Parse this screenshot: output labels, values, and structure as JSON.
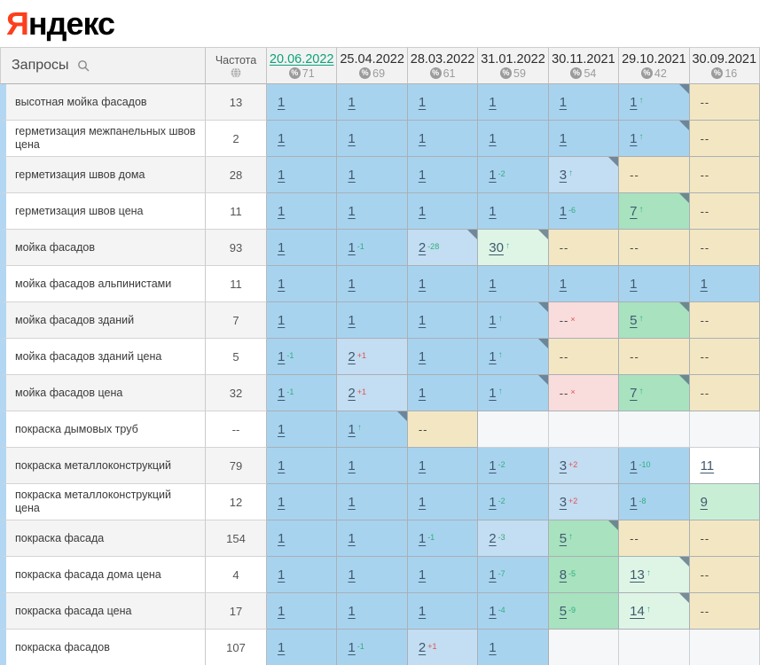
{
  "logo": {
    "ya": "Я",
    "rest": "ндекс"
  },
  "header": {
    "queries_label": "Запросы",
    "search_icon": "search-icon",
    "frequency_label": "Частота",
    "frequency_icon": "globe-icon",
    "dates": [
      {
        "label": "20.06.2022",
        "visibility": "71",
        "active": true
      },
      {
        "label": "25.04.2022",
        "visibility": "69",
        "active": false
      },
      {
        "label": "28.03.2022",
        "visibility": "61",
        "active": false
      },
      {
        "label": "31.01.2022",
        "visibility": "59",
        "active": false
      },
      {
        "label": "30.11.2021",
        "visibility": "54",
        "active": false
      },
      {
        "label": "29.10.2021",
        "visibility": "42",
        "active": false
      },
      {
        "label": "30.09.2021",
        "visibility": "16",
        "active": false
      }
    ]
  },
  "colors": {
    "active_date_link": "#0aa378",
    "logo_red": "#fc3f1d",
    "cell_top_blue": "#a8d3ef",
    "cell_blue_light": "#c3ddf2",
    "cell_missing_beige": "#f3e7c3",
    "cell_dropped_pink": "#f9dcdc",
    "cell_green": "#a8e2bf",
    "cell_green_light": "#c9eed6",
    "cell_green_pale": "#def5e6",
    "change_up_green": "#2fae7c",
    "change_down_red": "#e05252"
  },
  "rows": [
    {
      "query": "высотная мойка фасадов",
      "frequency": "13",
      "cells": [
        {
          "v": "1",
          "bg": "blue"
        },
        {
          "v": "1",
          "bg": "blue"
        },
        {
          "v": "1",
          "bg": "blue"
        },
        {
          "v": "1",
          "bg": "blue"
        },
        {
          "v": "1",
          "bg": "blue"
        },
        {
          "v": "1",
          "bg": "blue",
          "arrow": true,
          "corner": true
        },
        {
          "v": "--",
          "bg": "beige"
        }
      ]
    },
    {
      "query": "герметизация межпанельных швов цена",
      "frequency": "2",
      "cells": [
        {
          "v": "1",
          "bg": "blue"
        },
        {
          "v": "1",
          "bg": "blue"
        },
        {
          "v": "1",
          "bg": "blue"
        },
        {
          "v": "1",
          "bg": "blue"
        },
        {
          "v": "1",
          "bg": "blue"
        },
        {
          "v": "1",
          "bg": "blue",
          "arrow": true,
          "corner": true
        },
        {
          "v": "--",
          "bg": "beige"
        }
      ]
    },
    {
      "query": "герметизация швов дома",
      "frequency": "28",
      "cells": [
        {
          "v": "1",
          "bg": "blue"
        },
        {
          "v": "1",
          "bg": "blue"
        },
        {
          "v": "1",
          "bg": "blue"
        },
        {
          "v": "1",
          "bg": "blue",
          "sup": "-2",
          "supc": "green"
        },
        {
          "v": "3",
          "bg": "blue2",
          "arrow": true,
          "corner": true
        },
        {
          "v": "--",
          "bg": "beige"
        },
        {
          "v": "--",
          "bg": "beige"
        }
      ]
    },
    {
      "query": "герметизация швов цена",
      "frequency": "11",
      "cells": [
        {
          "v": "1",
          "bg": "blue"
        },
        {
          "v": "1",
          "bg": "blue"
        },
        {
          "v": "1",
          "bg": "blue"
        },
        {
          "v": "1",
          "bg": "blue"
        },
        {
          "v": "1",
          "bg": "blue",
          "sup": "-6",
          "supc": "green"
        },
        {
          "v": "7",
          "bg": "green",
          "arrow": true,
          "corner": true
        },
        {
          "v": "--",
          "bg": "beige"
        }
      ]
    },
    {
      "query": "мойка фасадов",
      "frequency": "93",
      "cells": [
        {
          "v": "1",
          "bg": "blue"
        },
        {
          "v": "1",
          "bg": "blue",
          "sup": "-1",
          "supc": "green"
        },
        {
          "v": "2",
          "bg": "blue2",
          "sup": "-28",
          "supc": "green",
          "corner": true
        },
        {
          "v": "30",
          "bg": "green3",
          "arrow": true,
          "corner": true
        },
        {
          "v": "--",
          "bg": "beige"
        },
        {
          "v": "--",
          "bg": "beige"
        },
        {
          "v": "--",
          "bg": "beige"
        }
      ]
    },
    {
      "query": "мойка фасадов альпинистами",
      "frequency": "11",
      "cells": [
        {
          "v": "1",
          "bg": "blue"
        },
        {
          "v": "1",
          "bg": "blue"
        },
        {
          "v": "1",
          "bg": "blue"
        },
        {
          "v": "1",
          "bg": "blue"
        },
        {
          "v": "1",
          "bg": "blue"
        },
        {
          "v": "1",
          "bg": "blue"
        },
        {
          "v": "1",
          "bg": "blue"
        }
      ]
    },
    {
      "query": "мойка фасадов зданий",
      "frequency": "7",
      "cells": [
        {
          "v": "1",
          "bg": "blue"
        },
        {
          "v": "1",
          "bg": "blue"
        },
        {
          "v": "1",
          "bg": "blue"
        },
        {
          "v": "1",
          "bg": "blue",
          "arrow": true,
          "corner": true
        },
        {
          "v": "--",
          "bg": "pink",
          "x": true
        },
        {
          "v": "5",
          "bg": "green",
          "arrow": true,
          "corner": true
        },
        {
          "v": "--",
          "bg": "beige"
        }
      ]
    },
    {
      "query": "мойка фасадов зданий цена",
      "frequency": "5",
      "cells": [
        {
          "v": "1",
          "bg": "blue",
          "sup": "-1",
          "supc": "green"
        },
        {
          "v": "2",
          "bg": "blue2",
          "sup": "+1",
          "supc": "red"
        },
        {
          "v": "1",
          "bg": "blue"
        },
        {
          "v": "1",
          "bg": "blue",
          "arrow": true,
          "corner": true
        },
        {
          "v": "--",
          "bg": "beige"
        },
        {
          "v": "--",
          "bg": "beige"
        },
        {
          "v": "--",
          "bg": "beige"
        }
      ]
    },
    {
      "query": "мойка фасадов цена",
      "frequency": "32",
      "cells": [
        {
          "v": "1",
          "bg": "blue",
          "sup": "-1",
          "supc": "green"
        },
        {
          "v": "2",
          "bg": "blue2",
          "sup": "+1",
          "supc": "red"
        },
        {
          "v": "1",
          "bg": "blue"
        },
        {
          "v": "1",
          "bg": "blue",
          "arrow": true,
          "corner": true
        },
        {
          "v": "--",
          "bg": "pink",
          "x": true
        },
        {
          "v": "7",
          "bg": "green",
          "arrow": true,
          "corner": true
        },
        {
          "v": "--",
          "bg": "beige"
        }
      ]
    },
    {
      "query": "покраска дымовых труб",
      "frequency": "--",
      "cells": [
        {
          "v": "1",
          "bg": "blue"
        },
        {
          "v": "1",
          "bg": "blue",
          "arrow": true,
          "corner": true
        },
        {
          "v": "--",
          "bg": "beige"
        },
        {
          "v": "",
          "bg": "empty"
        },
        {
          "v": "",
          "bg": "empty"
        },
        {
          "v": "",
          "bg": "empty"
        },
        {
          "v": "",
          "bg": "empty"
        }
      ]
    },
    {
      "query": "покраска металлоконструкций",
      "frequency": "79",
      "cells": [
        {
          "v": "1",
          "bg": "blue"
        },
        {
          "v": "1",
          "bg": "blue"
        },
        {
          "v": "1",
          "bg": "blue"
        },
        {
          "v": "1",
          "bg": "blue",
          "sup": "-2",
          "supc": "green"
        },
        {
          "v": "3",
          "bg": "blue2",
          "sup": "+2",
          "supc": "red"
        },
        {
          "v": "1",
          "bg": "blue",
          "sup": "-10",
          "supc": "green"
        },
        {
          "v": "11",
          "bg": "white"
        }
      ]
    },
    {
      "query": "покраска металлоконструкций цена",
      "frequency": "12",
      "cells": [
        {
          "v": "1",
          "bg": "blue"
        },
        {
          "v": "1",
          "bg": "blue"
        },
        {
          "v": "1",
          "bg": "blue"
        },
        {
          "v": "1",
          "bg": "blue",
          "sup": "-2",
          "supc": "green"
        },
        {
          "v": "3",
          "bg": "blue2",
          "sup": "+2",
          "supc": "red"
        },
        {
          "v": "1",
          "bg": "blue",
          "sup": "-8",
          "supc": "green"
        },
        {
          "v": "9",
          "bg": "green2"
        }
      ]
    },
    {
      "query": "покраска фасада",
      "frequency": "154",
      "cells": [
        {
          "v": "1",
          "bg": "blue"
        },
        {
          "v": "1",
          "bg": "blue"
        },
        {
          "v": "1",
          "bg": "blue",
          "sup": "-1",
          "supc": "green"
        },
        {
          "v": "2",
          "bg": "blue2",
          "sup": "-3",
          "supc": "green"
        },
        {
          "v": "5",
          "bg": "green",
          "arrow": true,
          "corner": true
        },
        {
          "v": "--",
          "bg": "beige"
        },
        {
          "v": "--",
          "bg": "beige"
        }
      ]
    },
    {
      "query": "покраска фасада дома цена",
      "frequency": "4",
      "cells": [
        {
          "v": "1",
          "bg": "blue"
        },
        {
          "v": "1",
          "bg": "blue"
        },
        {
          "v": "1",
          "bg": "blue"
        },
        {
          "v": "1",
          "bg": "blue",
          "sup": "-7",
          "supc": "green"
        },
        {
          "v": "8",
          "bg": "green",
          "sup": "-5",
          "supc": "green"
        },
        {
          "v": "13",
          "bg": "green3",
          "arrow": true,
          "corner": true
        },
        {
          "v": "--",
          "bg": "beige"
        }
      ]
    },
    {
      "query": "покраска фасада цена",
      "frequency": "17",
      "cells": [
        {
          "v": "1",
          "bg": "blue"
        },
        {
          "v": "1",
          "bg": "blue"
        },
        {
          "v": "1",
          "bg": "blue"
        },
        {
          "v": "1",
          "bg": "blue",
          "sup": "-4",
          "supc": "green"
        },
        {
          "v": "5",
          "bg": "green",
          "sup": "-9",
          "supc": "green"
        },
        {
          "v": "14",
          "bg": "green3",
          "arrow": true,
          "corner": true
        },
        {
          "v": "--",
          "bg": "beige"
        }
      ]
    },
    {
      "query": "покраска фасадов",
      "frequency": "107",
      "cells": [
        {
          "v": "1",
          "bg": "blue"
        },
        {
          "v": "1",
          "bg": "blue",
          "sup": "-1",
          "supc": "green"
        },
        {
          "v": "2",
          "bg": "blue2",
          "sup": "+1",
          "supc": "red"
        },
        {
          "v": "1",
          "bg": "blue"
        },
        {
          "v": "",
          "bg": "empty"
        },
        {
          "v": "",
          "bg": "empty"
        },
        {
          "v": "",
          "bg": "empty"
        }
      ]
    }
  ]
}
